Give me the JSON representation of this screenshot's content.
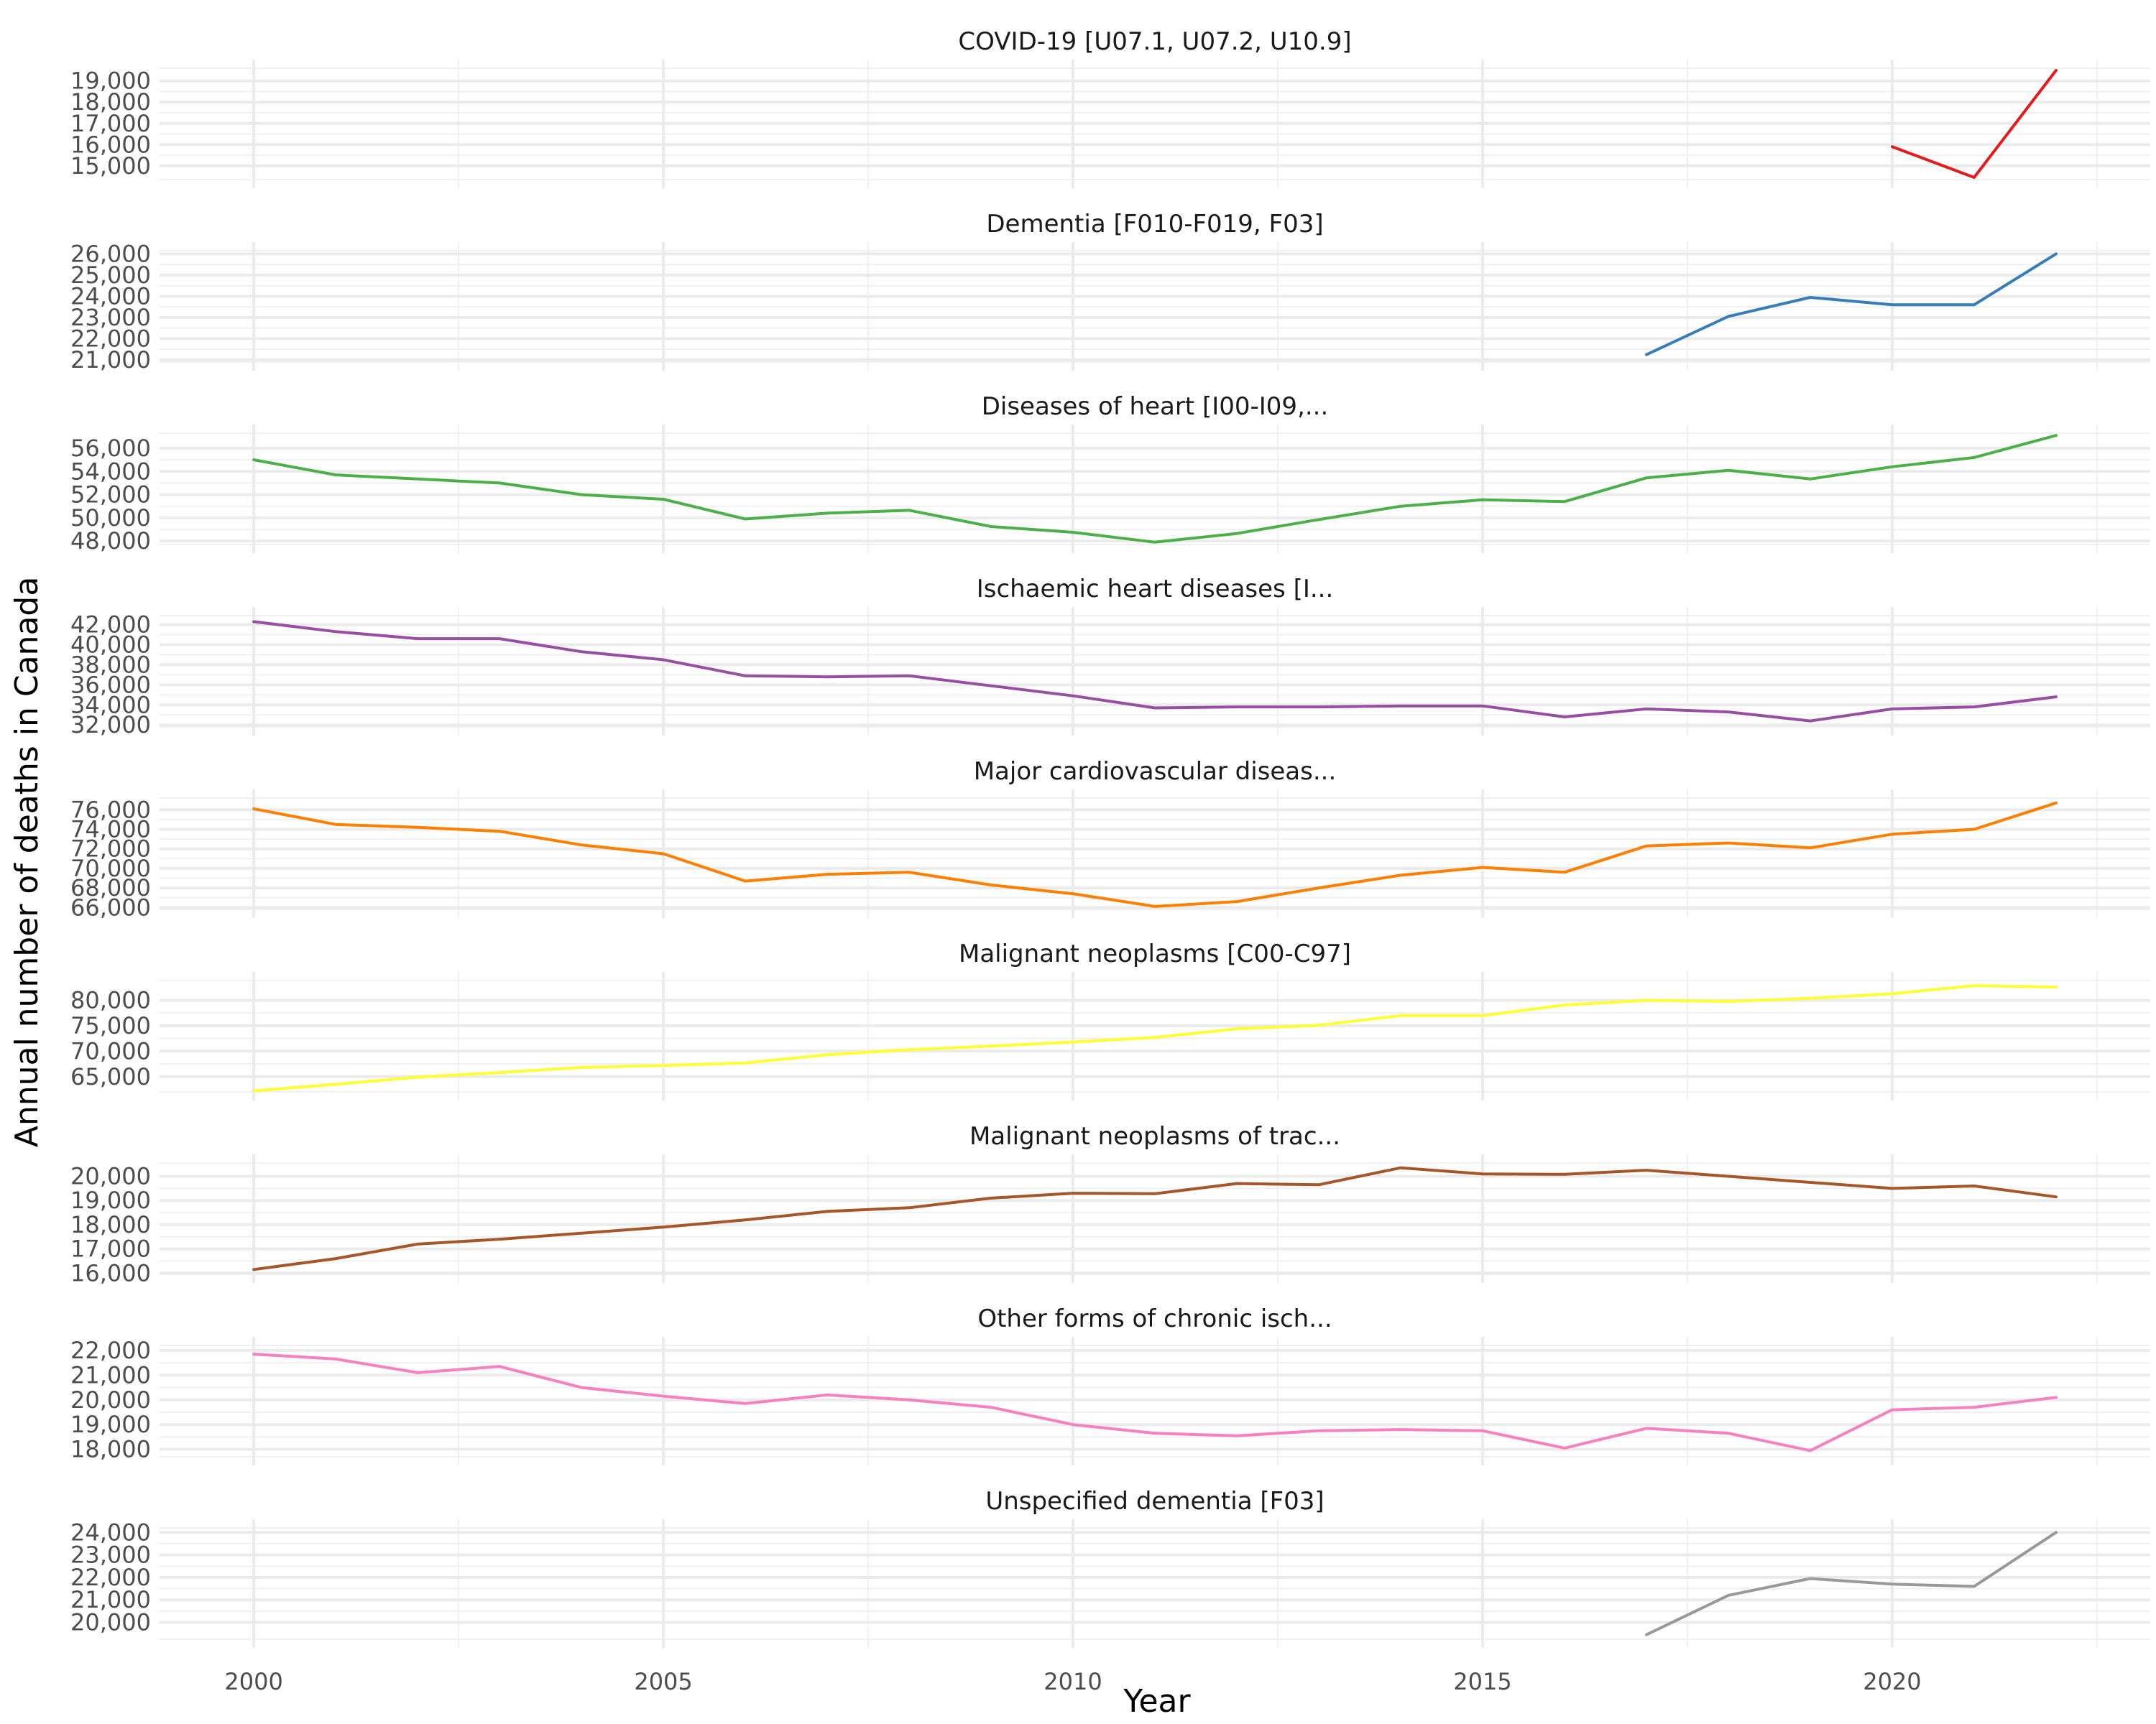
{
  "chart_data": {
    "type": "line",
    "xlabel": "Year",
    "ylabel": "Annual number of deaths in Canada",
    "grid": true,
    "legend": "none",
    "x_ticks": [
      2000,
      2005,
      2010,
      2015,
      2020
    ],
    "xlim": [
      1998.85,
      2023.15
    ],
    "panels": [
      {
        "title": "COVID-19 [U07.1, U07.2, U10.9]",
        "color": "#e41a1c",
        "ylim": [
          14350,
          19600
        ],
        "y_ticks": [
          15000,
          16000,
          17000,
          18000,
          19000
        ],
        "y_tick_labels": [
          "15,000",
          "16,000",
          "17,000",
          "18,000",
          "19,000"
        ],
        "points": [
          [
            2020,
            15900
          ],
          [
            2021,
            14450
          ],
          [
            2022,
            19500
          ]
        ]
      },
      {
        "title": "Dementia [F010-F019, F03]",
        "color": "#377eb8",
        "ylim": [
          20900,
          26150
        ],
        "y_ticks": [
          21000,
          22000,
          23000,
          24000,
          25000,
          26000
        ],
        "y_tick_labels": [
          "21,000",
          "22,000",
          "23,000",
          "24,000",
          "25,000",
          "26,000"
        ],
        "points": [
          [
            2017,
            21250
          ],
          [
            2018,
            23050
          ],
          [
            2019,
            23950
          ],
          [
            2020,
            23600
          ],
          [
            2021,
            23600
          ],
          [
            2022,
            26000
          ]
        ]
      },
      {
        "title": "Diseases of heart [I00-I09,...",
        "color": "#4daf4a",
        "ylim": [
          47700,
          57300
        ],
        "y_ticks": [
          48000,
          50000,
          52000,
          54000,
          56000
        ],
        "y_tick_labels": [
          "48,000",
          "50,000",
          "52,000",
          "54,000",
          "56,000"
        ],
        "points": [
          [
            2000,
            55000
          ],
          [
            2001,
            53700
          ],
          [
            2002,
            53350
          ],
          [
            2003,
            53000
          ],
          [
            2004,
            52000
          ],
          [
            2005,
            51600
          ],
          [
            2006,
            49900
          ],
          [
            2007,
            50400
          ],
          [
            2008,
            50650
          ],
          [
            2009,
            49250
          ],
          [
            2010,
            48750
          ],
          [
            2011,
            47900
          ],
          [
            2012,
            48650
          ],
          [
            2013,
            49850
          ],
          [
            2014,
            51000
          ],
          [
            2015,
            51550
          ],
          [
            2016,
            51400
          ],
          [
            2017,
            53450
          ],
          [
            2018,
            54100
          ],
          [
            2019,
            53350
          ],
          [
            2020,
            54400
          ],
          [
            2021,
            55200
          ],
          [
            2022,
            57100
          ]
        ]
      },
      {
        "title": "Ischaemic heart diseases [I...",
        "color": "#984ea3",
        "ylim": [
          31800,
          42900
        ],
        "y_ticks": [
          32000,
          34000,
          36000,
          38000,
          40000,
          42000
        ],
        "y_tick_labels": [
          "32,000",
          "34,000",
          "36,000",
          "38,000",
          "40,000",
          "42,000"
        ],
        "points": [
          [
            2000,
            42300
          ],
          [
            2001,
            41300
          ],
          [
            2002,
            40600
          ],
          [
            2003,
            40600
          ],
          [
            2004,
            39300
          ],
          [
            2005,
            38500
          ],
          [
            2006,
            36900
          ],
          [
            2007,
            36800
          ],
          [
            2008,
            36900
          ],
          [
            2009,
            35900
          ],
          [
            2010,
            34900
          ],
          [
            2011,
            33700
          ],
          [
            2012,
            33800
          ],
          [
            2013,
            33800
          ],
          [
            2014,
            33900
          ],
          [
            2015,
            33900
          ],
          [
            2016,
            32800
          ],
          [
            2017,
            33600
          ],
          [
            2018,
            33300
          ],
          [
            2019,
            32400
          ],
          [
            2020,
            33600
          ],
          [
            2021,
            33800
          ],
          [
            2022,
            34800
          ]
        ]
      },
      {
        "title": "Major cardiovascular diseas...",
        "color": "#ff7f00",
        "ylim": [
          65800,
          77200
        ],
        "y_ticks": [
          66000,
          68000,
          70000,
          72000,
          74000,
          76000
        ],
        "y_tick_labels": [
          "66,000",
          "68,000",
          "70,000",
          "72,000",
          "74,000",
          "76,000"
        ],
        "points": [
          [
            2000,
            76100
          ],
          [
            2001,
            74500
          ],
          [
            2002,
            74200
          ],
          [
            2003,
            73800
          ],
          [
            2004,
            72400
          ],
          [
            2005,
            71500
          ],
          [
            2006,
            68700
          ],
          [
            2007,
            69400
          ],
          [
            2008,
            69600
          ],
          [
            2009,
            68300
          ],
          [
            2010,
            67400
          ],
          [
            2011,
            66100
          ],
          [
            2012,
            66600
          ],
          [
            2013,
            68000
          ],
          [
            2014,
            69300
          ],
          [
            2015,
            70100
          ],
          [
            2016,
            69600
          ],
          [
            2017,
            72300
          ],
          [
            2018,
            72600
          ],
          [
            2019,
            72100
          ],
          [
            2020,
            73500
          ],
          [
            2021,
            74000
          ],
          [
            2022,
            76700
          ]
        ]
      },
      {
        "title": "Malignant neoplasms [C00-C97]",
        "color": "#ffff33",
        "ylim": [
          62000,
          83900
        ],
        "y_ticks": [
          65000,
          70000,
          75000,
          80000
        ],
        "y_tick_labels": [
          "65,000",
          "70,000",
          "75,000",
          "80,000"
        ],
        "points": [
          [
            2000,
            62200
          ],
          [
            2001,
            63500
          ],
          [
            2002,
            64900
          ],
          [
            2003,
            65800
          ],
          [
            2004,
            66800
          ],
          [
            2005,
            67200
          ],
          [
            2006,
            67700
          ],
          [
            2007,
            69300
          ],
          [
            2008,
            70300
          ],
          [
            2009,
            71000
          ],
          [
            2010,
            71800
          ],
          [
            2011,
            72700
          ],
          [
            2012,
            74400
          ],
          [
            2013,
            75100
          ],
          [
            2014,
            77000
          ],
          [
            2015,
            77000
          ],
          [
            2016,
            79100
          ],
          [
            2017,
            80000
          ],
          [
            2018,
            79800
          ],
          [
            2019,
            80400
          ],
          [
            2020,
            81300
          ],
          [
            2021,
            82900
          ],
          [
            2022,
            82600
          ]
        ]
      },
      {
        "title": "Malignant neoplasms of trac...",
        "color": "#a65628",
        "ylim": [
          15950,
          20550
        ],
        "y_ticks": [
          16000,
          17000,
          18000,
          19000,
          20000
        ],
        "y_tick_labels": [
          "16,000",
          "17,000",
          "18,000",
          "19,000",
          "20,000"
        ],
        "points": [
          [
            2000,
            16150
          ],
          [
            2001,
            16600
          ],
          [
            2002,
            17200
          ],
          [
            2003,
            17400
          ],
          [
            2004,
            17650
          ],
          [
            2005,
            17900
          ],
          [
            2006,
            18200
          ],
          [
            2007,
            18550
          ],
          [
            2008,
            18700
          ],
          [
            2009,
            19100
          ],
          [
            2010,
            19300
          ],
          [
            2011,
            19280
          ],
          [
            2012,
            19700
          ],
          [
            2013,
            19650
          ],
          [
            2014,
            20350
          ],
          [
            2015,
            20100
          ],
          [
            2016,
            20080
          ],
          [
            2017,
            20250
          ],
          [
            2018,
            20000
          ],
          [
            2019,
            19750
          ],
          [
            2020,
            19500
          ],
          [
            2021,
            19600
          ],
          [
            2022,
            19150
          ]
        ]
      },
      {
        "title": "Other forms of chronic isch...",
        "color": "#f781bf",
        "ylim": [
          17700,
          22200
        ],
        "y_ticks": [
          18000,
          19000,
          20000,
          21000,
          22000
        ],
        "y_tick_labels": [
          "18,000",
          "19,000",
          "20,000",
          "21,000",
          "22,000"
        ],
        "points": [
          [
            2000,
            21850
          ],
          [
            2001,
            21650
          ],
          [
            2002,
            21100
          ],
          [
            2003,
            21350
          ],
          [
            2004,
            20500
          ],
          [
            2005,
            20150
          ],
          [
            2006,
            19850
          ],
          [
            2007,
            20200
          ],
          [
            2008,
            20000
          ],
          [
            2009,
            19700
          ],
          [
            2010,
            19000
          ],
          [
            2011,
            18650
          ],
          [
            2012,
            18550
          ],
          [
            2013,
            18750
          ],
          [
            2014,
            18800
          ],
          [
            2015,
            18750
          ],
          [
            2016,
            18050
          ],
          [
            2017,
            18850
          ],
          [
            2018,
            18650
          ],
          [
            2019,
            17950
          ],
          [
            2020,
            19600
          ],
          [
            2021,
            19700
          ],
          [
            2022,
            20100
          ]
        ]
      },
      {
        "title": "Unspecified dementia [F03]",
        "color": "#999999",
        "ylim": [
          19250,
          24200
        ],
        "y_ticks": [
          20000,
          21000,
          22000,
          23000,
          24000
        ],
        "y_tick_labels": [
          "20,000",
          "21,000",
          "22,000",
          "23,000",
          "24,000"
        ],
        "points": [
          [
            2017,
            19450
          ],
          [
            2018,
            21200
          ],
          [
            2019,
            21950
          ],
          [
            2020,
            21700
          ],
          [
            2021,
            21600
          ],
          [
            2022,
            24000
          ]
        ]
      }
    ]
  }
}
